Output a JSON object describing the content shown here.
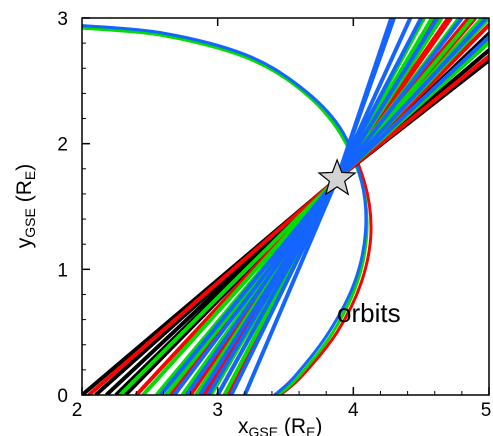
{
  "chart_data": {
    "type": "line",
    "xlabel": {
      "main": "x",
      "sub": "GSE",
      "unit_open": " (R",
      "unit_sub": "E",
      "unit_close": ")"
    },
    "ylabel": {
      "main": "y",
      "sub": "GSE",
      "unit_open": " (R",
      "unit_sub": "E",
      "unit_close": ")"
    },
    "xlim": [
      2,
      5
    ],
    "ylim": [
      0,
      3
    ],
    "x_ticks": [
      2,
      3,
      4,
      5
    ],
    "y_ticks": [
      0,
      1,
      2,
      3
    ],
    "x_tick_labels": [
      "2",
      "3",
      "4",
      "5"
    ],
    "y_tick_labels": [
      "0",
      "1",
      "2",
      "3"
    ],
    "annotation": "orbits",
    "colors": {
      "black": "#000000",
      "red": "#ff0000",
      "green": "#00dd00",
      "blue": "#1464ff",
      "marker_fill": "#d3d3d3"
    },
    "crossing_point": {
      "x": 3.88,
      "y": 1.72,
      "marker": "star"
    },
    "orbit_arcs": [
      {
        "color": "red",
        "points": [
          [
            2,
            2.93
          ],
          [
            2.6,
            2.87
          ],
          [
            3.2,
            2.7
          ],
          [
            3.6,
            2.45
          ],
          [
            3.9,
            2.12
          ],
          [
            4.08,
            1.7
          ],
          [
            4.13,
            1.3
          ],
          [
            4.06,
            0.9
          ],
          [
            3.88,
            0.5
          ],
          [
            3.62,
            0.15
          ],
          [
            3.46,
            0
          ]
        ]
      },
      {
        "color": "green",
        "points": [
          [
            2,
            2.92
          ],
          [
            2.6,
            2.86
          ],
          [
            3.2,
            2.69
          ],
          [
            3.6,
            2.44
          ],
          [
            3.88,
            2.12
          ],
          [
            4.06,
            1.7
          ],
          [
            4.1,
            1.3
          ],
          [
            4.03,
            0.9
          ],
          [
            3.85,
            0.5
          ],
          [
            3.6,
            0.15
          ],
          [
            3.45,
            0
          ]
        ]
      },
      {
        "color": "blue",
        "points": [
          [
            2,
            2.94
          ],
          [
            2.6,
            2.88
          ],
          [
            3.2,
            2.71
          ],
          [
            3.6,
            2.46
          ],
          [
            3.9,
            2.13
          ],
          [
            4.06,
            1.7
          ],
          [
            4.09,
            1.3
          ],
          [
            4.01,
            0.9
          ],
          [
            3.82,
            0.5
          ],
          [
            3.57,
            0.15
          ],
          [
            3.42,
            0
          ]
        ]
      }
    ],
    "lines": [
      {
        "color": "black",
        "x0": 2.0,
        "x_top": 5.12
      },
      {
        "color": "black",
        "x0": 2.1,
        "x_top": 5.28
      },
      {
        "color": "black",
        "x0": 2.18,
        "x_top": 5.0
      },
      {
        "color": "black",
        "x0": 2.25,
        "x_top": 5.4
      },
      {
        "color": "black",
        "x0": 2.32,
        "x_top": 5.2
      },
      {
        "color": "red",
        "x0": 2.05,
        "x_top": 5.35
      },
      {
        "color": "red",
        "x0": 2.4,
        "x_top": 5.05
      },
      {
        "color": "red",
        "x0": 2.65,
        "x_top": 4.9
      },
      {
        "color": "red",
        "x0": 2.8,
        "x_top": 4.85
      },
      {
        "color": "red",
        "x0": 2.9,
        "x_top": 4.72
      },
      {
        "color": "red",
        "x0": 3.0,
        "x_top": 4.7
      },
      {
        "color": "red",
        "x0": 3.08,
        "x_top": 4.6
      },
      {
        "color": "green",
        "x0": 2.28,
        "x_top": 5.2
      },
      {
        "color": "green",
        "x0": 2.45,
        "x_top": 5.0
      },
      {
        "color": "green",
        "x0": 2.55,
        "x_top": 4.95
      },
      {
        "color": "green",
        "x0": 2.62,
        "x_top": 4.88
      },
      {
        "color": "green",
        "x0": 2.74,
        "x_top": 4.78
      },
      {
        "color": "green",
        "x0": 2.84,
        "x_top": 4.65
      },
      {
        "color": "green",
        "x0": 2.95,
        "x_top": 4.58
      },
      {
        "color": "green",
        "x0": 3.05,
        "x_top": 4.52
      },
      {
        "color": "blue",
        "x0": 2.58,
        "x_top": 5.15
      },
      {
        "color": "blue",
        "x0": 2.68,
        "x_top": 4.98
      },
      {
        "color": "blue",
        "x0": 2.77,
        "x_top": 4.8
      },
      {
        "color": "blue",
        "x0": 2.87,
        "x_top": 4.62
      },
      {
        "color": "blue",
        "x0": 2.93,
        "x_top": 4.5
      },
      {
        "color": "blue",
        "x0": 3.0,
        "x_top": 4.42
      },
      {
        "color": "blue",
        "x0": 3.1,
        "x_top": 4.3
      },
      {
        "color": "blue",
        "x0": 3.2,
        "x_top": 4.28
      }
    ]
  }
}
